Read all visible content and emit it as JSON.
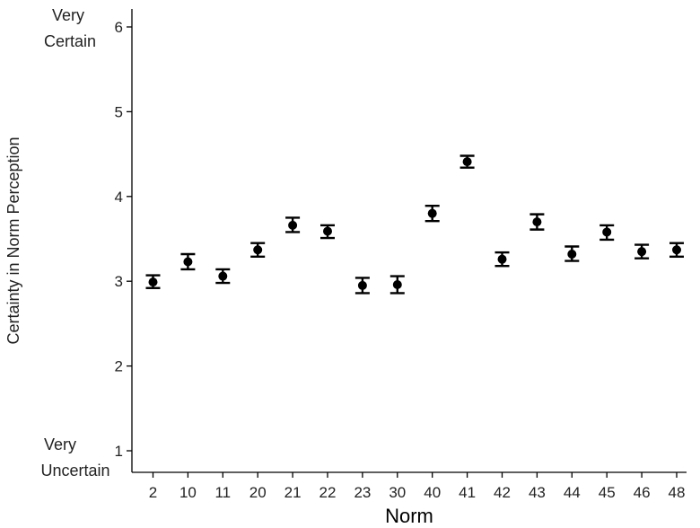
{
  "chart_data": {
    "type": "scatter",
    "title": "",
    "xlabel": "Norm",
    "ylabel": "Certainty in Norm Perception",
    "ylim": [
      0.75,
      6.2
    ],
    "yticks": [
      1,
      2,
      3,
      4,
      5,
      6
    ],
    "grid": false,
    "categories": [
      "2",
      "10",
      "11",
      "20",
      "21",
      "22",
      "23",
      "30",
      "40",
      "41",
      "42",
      "43",
      "44",
      "45",
      "46",
      "48"
    ],
    "values": [
      2.99,
      3.23,
      3.06,
      3.37,
      3.66,
      3.59,
      2.95,
      2.96,
      3.8,
      4.41,
      3.26,
      3.7,
      3.32,
      3.58,
      3.35,
      3.37
    ],
    "error_lower": [
      2.92,
      3.14,
      2.98,
      3.29,
      3.58,
      3.51,
      2.86,
      2.86,
      3.71,
      4.34,
      3.18,
      3.61,
      3.24,
      3.49,
      3.27,
      3.29
    ],
    "error_upper": [
      3.07,
      3.32,
      3.14,
      3.45,
      3.75,
      3.66,
      3.04,
      3.06,
      3.89,
      4.48,
      3.34,
      3.79,
      3.41,
      3.66,
      3.43,
      3.45
    ],
    "annotations": {
      "top": [
        "Very",
        "Certain"
      ],
      "bottom": [
        "Very",
        "Uncertain"
      ]
    }
  }
}
